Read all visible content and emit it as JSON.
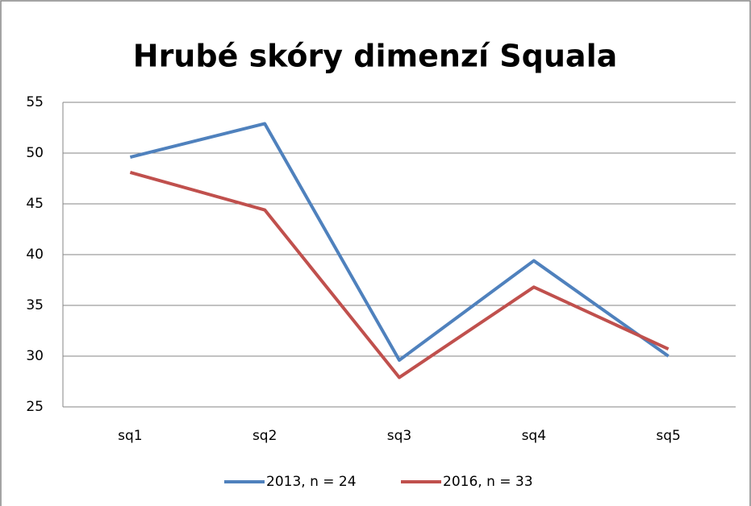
{
  "chart_data": {
    "type": "line",
    "title": "Hrubé skóry dimenzí Squala",
    "categories": [
      "sq1",
      "sq2",
      "sq3",
      "sq4",
      "sq5"
    ],
    "series": [
      {
        "name": "2013, n = 24",
        "color": "#4f81bd",
        "values": [
          49.6,
          52.9,
          29.6,
          39.4,
          30.0
        ]
      },
      {
        "name": "2016, n = 33",
        "color": "#c0504d",
        "values": [
          48.1,
          44.4,
          27.9,
          36.8,
          30.7
        ]
      }
    ],
    "ylim": [
      25,
      55
    ],
    "yticks": [
      25,
      30,
      35,
      40,
      45,
      50,
      55
    ],
    "grid": true,
    "legend": "bottom"
  }
}
